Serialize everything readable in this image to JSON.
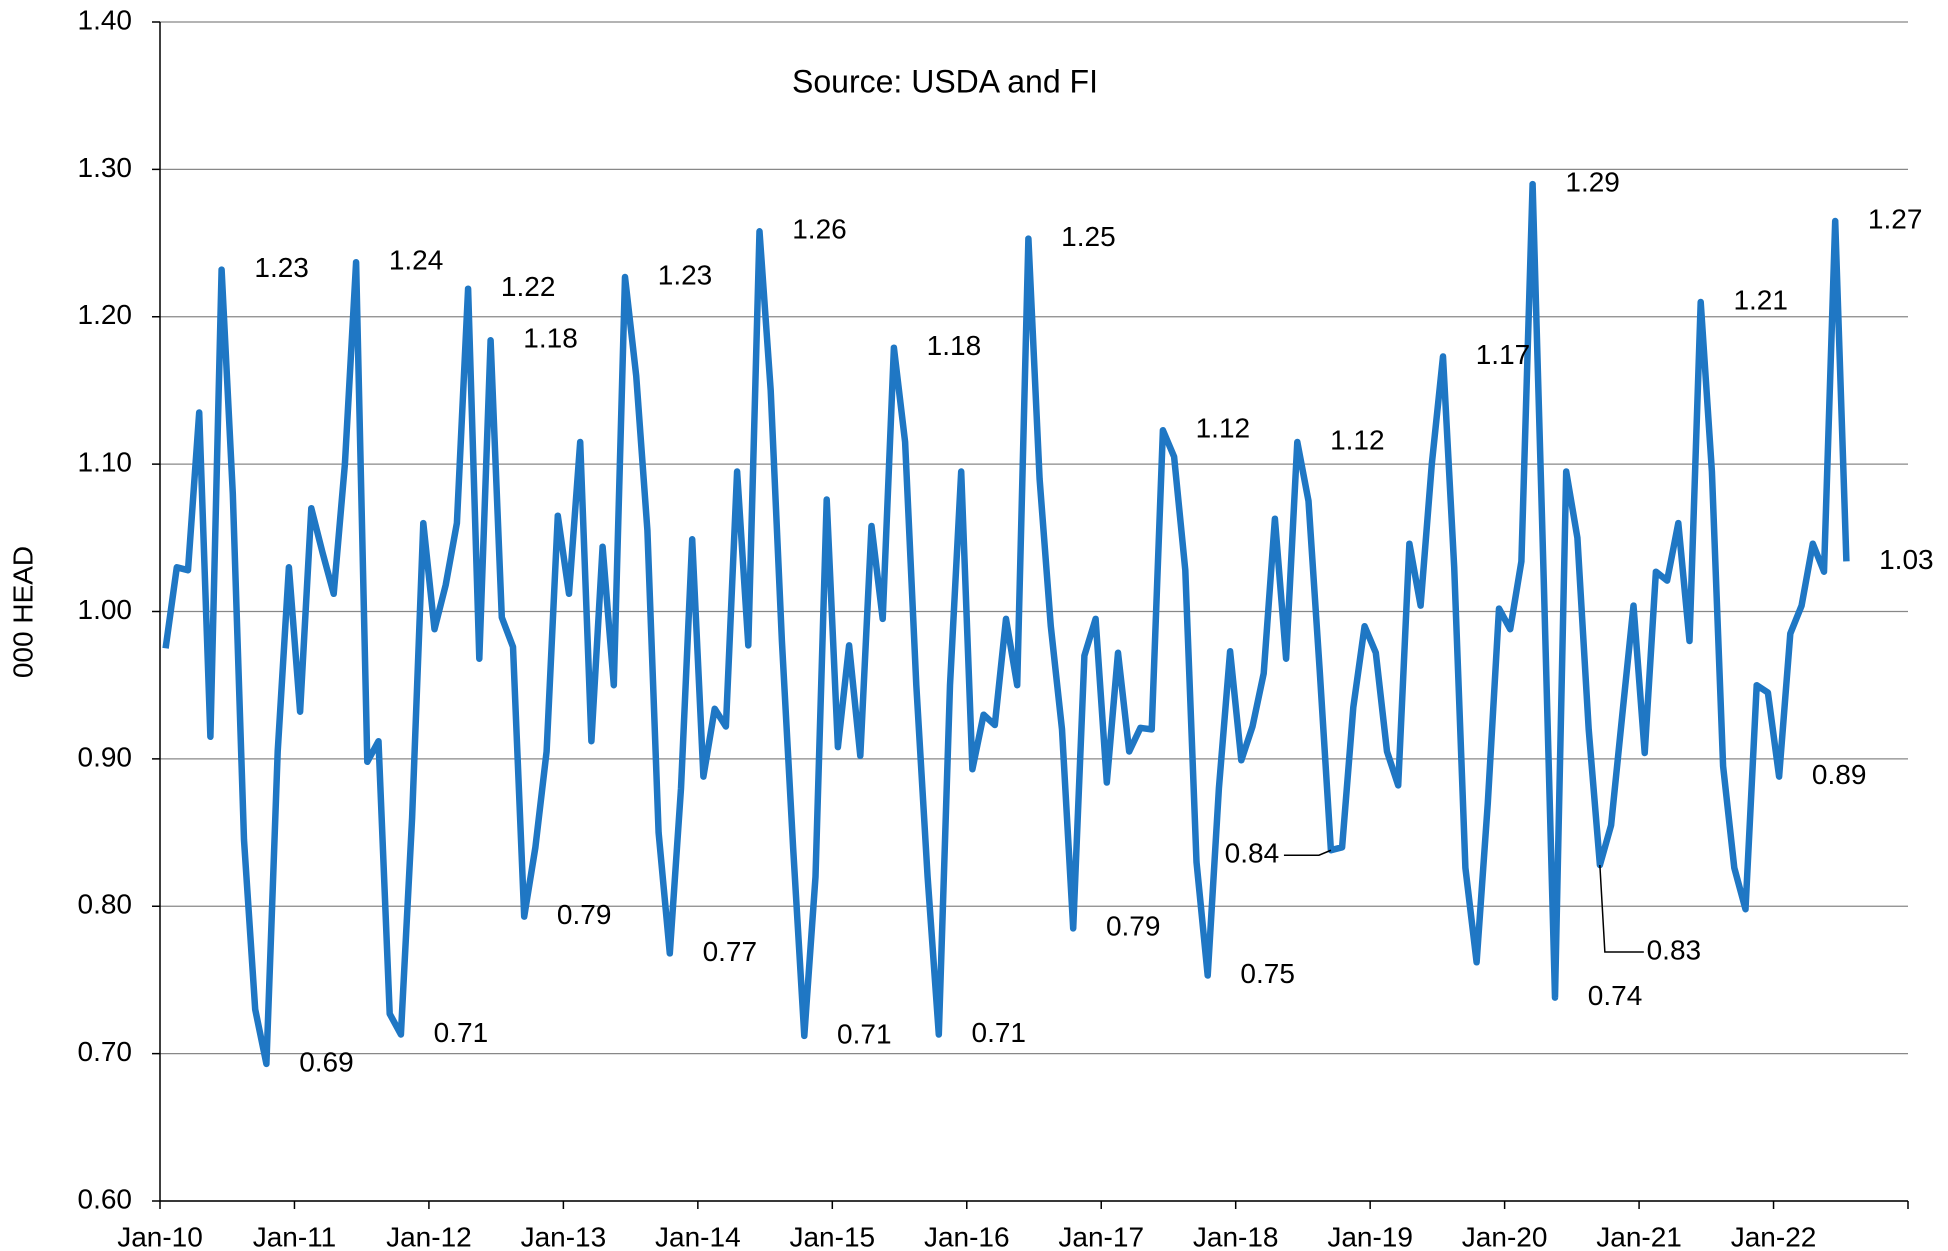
{
  "chart_data": {
    "type": "line",
    "annotation": "Source: USDA and FI",
    "y_label": "000 HEAD",
    "categories": [
      "Jan-10",
      null,
      null,
      null,
      null,
      null,
      null,
      null,
      null,
      null,
      null,
      null,
      "Jan-11",
      null,
      null,
      null,
      null,
      null,
      null,
      null,
      null,
      null,
      null,
      null,
      "Jan-12",
      null,
      null,
      null,
      null,
      null,
      null,
      null,
      null,
      null,
      null,
      null,
      "Jan-13",
      null,
      null,
      null,
      null,
      null,
      null,
      null,
      null,
      null,
      null,
      null,
      "Jan-14",
      null,
      null,
      null,
      null,
      null,
      null,
      null,
      null,
      null,
      null,
      null,
      "Jan-15",
      null,
      null,
      null,
      null,
      null,
      null,
      null,
      null,
      null,
      null,
      null,
      "Jan-16",
      null,
      null,
      null,
      null,
      null,
      null,
      null,
      null,
      null,
      null,
      null,
      "Jan-17",
      null,
      null,
      null,
      null,
      null,
      null,
      null,
      null,
      null,
      null,
      null,
      "Jan-18",
      null,
      null,
      null,
      null,
      null,
      null,
      null,
      null,
      null,
      null,
      null,
      "Jan-19",
      null,
      null,
      null,
      null,
      null,
      null,
      null,
      null,
      null,
      null,
      null,
      "Jan-20",
      null,
      null,
      null,
      null,
      null,
      null,
      null,
      null,
      null,
      null,
      null,
      "Jan-21",
      null,
      null,
      null,
      null,
      null,
      null,
      null,
      null,
      null,
      null,
      null,
      "Jan-22",
      null,
      null,
      null,
      null,
      null,
      null,
      null,
      null,
      null,
      null,
      null
    ],
    "values": [
      0.975,
      1.03,
      1.028,
      1.135,
      0.915,
      1.232,
      1.08,
      0.845,
      0.73,
      0.693,
      0.905,
      1.03,
      0.932,
      1.07,
      1.04,
      1.012,
      1.1,
      1.237,
      0.898,
      0.912,
      0.727,
      0.713,
      0.86,
      1.06,
      0.988,
      1.018,
      1.06,
      1.219,
      0.968,
      1.184,
      0.996,
      0.976,
      0.793,
      0.84,
      0.905,
      1.065,
      1.012,
      1.115,
      0.912,
      1.044,
      0.95,
      1.227,
      1.16,
      1.055,
      0.85,
      0.768,
      0.88,
      1.049,
      0.888,
      0.934,
      0.922,
      1.095,
      0.977,
      1.258,
      1.15,
      0.98,
      0.84,
      0.712,
      0.82,
      1.076,
      0.908,
      0.977,
      0.902,
      1.058,
      0.995,
      1.179,
      1.115,
      0.95,
      0.82,
      0.713,
      0.95,
      1.095,
      0.893,
      0.93,
      0.923,
      0.995,
      0.95,
      1.253,
      1.09,
      0.99,
      0.92,
      0.785,
      0.97,
      0.995,
      0.884,
      0.972,
      0.905,
      0.921,
      0.92,
      1.123,
      1.105,
      1.028,
      0.83,
      0.753,
      0.88,
      0.973,
      0.899,
      0.922,
      0.958,
      1.063,
      0.968,
      1.115,
      1.075,
      0.96,
      0.838,
      0.84,
      0.935,
      0.99,
      0.972,
      0.905,
      0.882,
      1.046,
      1.004,
      1.1,
      1.173,
      1.03,
      0.826,
      0.762,
      0.87,
      1.002,
      0.988,
      1.034,
      1.29,
      1.02,
      0.738,
      1.095,
      1.05,
      0.92,
      0.828,
      0.855,
      0.93,
      1.004,
      0.904,
      1.027,
      1.021,
      1.06,
      0.98,
      1.21,
      1.095,
      0.895,
      0.826,
      0.798,
      0.95,
      0.945,
      0.888,
      0.985,
      1.004,
      1.046,
      1.027,
      1.265,
      1.034,
      null,
      null,
      null,
      null,
      null
    ],
    "value_labels": [
      null,
      null,
      null,
      null,
      null,
      "1.23",
      null,
      null,
      null,
      "0.69",
      null,
      null,
      null,
      null,
      null,
      null,
      null,
      "1.24",
      null,
      null,
      null,
      "0.71",
      null,
      null,
      null,
      null,
      null,
      "1.22",
      null,
      "1.18",
      null,
      null,
      "0.79",
      null,
      null,
      null,
      null,
      null,
      null,
      null,
      null,
      "1.23",
      null,
      null,
      null,
      "0.77",
      null,
      null,
      null,
      null,
      null,
      null,
      null,
      "1.26",
      null,
      null,
      null,
      "0.71",
      null,
      null,
      null,
      null,
      null,
      null,
      null,
      "1.18",
      null,
      null,
      null,
      "0.71",
      null,
      null,
      null,
      null,
      null,
      null,
      null,
      "1.25",
      null,
      null,
      null,
      "0.79",
      null,
      null,
      null,
      null,
      null,
      null,
      null,
      "1.12",
      null,
      null,
      null,
      "0.75",
      null,
      null,
      null,
      null,
      null,
      null,
      null,
      "1.12",
      null,
      null,
      "0.84",
      null,
      null,
      null,
      null,
      null,
      null,
      null,
      null,
      null,
      "1.17",
      null,
      null,
      null,
      null,
      null,
      null,
      null,
      "1.29",
      null,
      "0.74",
      null,
      null,
      null,
      "0.83",
      null,
      null,
      null,
      null,
      null,
      null,
      null,
      null,
      "1.21",
      null,
      null,
      null,
      null,
      null,
      null,
      "0.89",
      null,
      null,
      null,
      null,
      "1.27",
      "1.03",
      null,
      null,
      null,
      null,
      null
    ],
    "color": "#1f77c4",
    "ylim": [
      0.6,
      1.4
    ],
    "yticks": [
      {
        "value": 0.6,
        "label": "0.60"
      },
      {
        "value": 0.7,
        "label": "0.70"
      },
      {
        "value": 0.8,
        "label": "0.80"
      },
      {
        "value": 0.9,
        "label": "0.90"
      },
      {
        "value": 1.0,
        "label": "1.00"
      },
      {
        "value": 1.1,
        "label": "1.10"
      },
      {
        "value": 1.2,
        "label": "1.20"
      },
      {
        "value": 1.3,
        "label": "1.30"
      },
      {
        "value": 1.4,
        "label": "1.40"
      }
    ],
    "grid": true
  }
}
